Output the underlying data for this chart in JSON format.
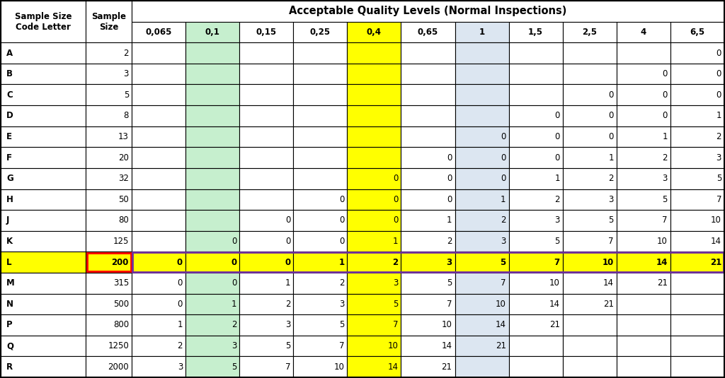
{
  "title": "Acceptable Quality Levels (Normal Inspections)",
  "row_labels": [
    "A",
    "B",
    "C",
    "D",
    "E",
    "F",
    "G",
    "H",
    "J",
    "K",
    "L",
    "M",
    "N",
    "P",
    "Q",
    "R"
  ],
  "sample_sizes": [
    "2",
    "3",
    "5",
    "8",
    "13",
    "20",
    "32",
    "50",
    "80",
    "125",
    "200",
    "315",
    "500",
    "800",
    "1250",
    "2000"
  ],
  "aql_headers": [
    "0,065",
    "0,1",
    "0,15",
    "0,25",
    "0,4",
    "0,65",
    "1",
    "1,5",
    "2,5",
    "4",
    "6,5"
  ],
  "table_data": [
    [
      "",
      "",
      "",
      "",
      "",
      "",
      "",
      "",
      "",
      "",
      "0"
    ],
    [
      "",
      "",
      "",
      "",
      "",
      "",
      "",
      "",
      "",
      "0",
      "0"
    ],
    [
      "",
      "",
      "",
      "",
      "",
      "",
      "",
      "",
      "0",
      "0",
      "0"
    ],
    [
      "",
      "",
      "",
      "",
      "",
      "",
      "",
      "0",
      "0",
      "0",
      "1"
    ],
    [
      "",
      "",
      "",
      "",
      "",
      "",
      "0",
      "0",
      "0",
      "1",
      "2"
    ],
    [
      "",
      "",
      "",
      "",
      "",
      "0",
      "0",
      "0",
      "1",
      "2",
      "3"
    ],
    [
      "",
      "",
      "",
      "",
      "0",
      "0",
      "0",
      "1",
      "2",
      "3",
      "5"
    ],
    [
      "",
      "",
      "",
      "0",
      "0",
      "0",
      "1",
      "2",
      "3",
      "5",
      "7"
    ],
    [
      "",
      "",
      "0",
      "0",
      "0",
      "1",
      "2",
      "3",
      "5",
      "7",
      "10"
    ],
    [
      "",
      "0",
      "0",
      "0",
      "1",
      "2",
      "3",
      "5",
      "7",
      "10",
      "14"
    ],
    [
      "0",
      "0",
      "0",
      "1",
      "2",
      "3",
      "5",
      "7",
      "10",
      "14",
      "21"
    ],
    [
      "0",
      "0",
      "1",
      "2",
      "3",
      "5",
      "7",
      "10",
      "14",
      "21",
      ""
    ],
    [
      "0",
      "1",
      "2",
      "3",
      "5",
      "7",
      "10",
      "14",
      "21",
      "",
      ""
    ],
    [
      "1",
      "2",
      "3",
      "5",
      "7",
      "10",
      "14",
      "21",
      "",
      "",
      ""
    ],
    [
      "2",
      "3",
      "5",
      "7",
      "10",
      "14",
      "21",
      "",
      "",
      "",
      ""
    ],
    [
      "3",
      "5",
      "7",
      "10",
      "14",
      "21",
      "",
      "",
      "",
      "",
      ""
    ]
  ],
  "bg_white": "#ffffff",
  "bg_yellow": "#ffff00",
  "bg_green": "#c6efce",
  "bg_blue": "#dce6f1",
  "border_black": "#000000",
  "border_purple": "#7030a0",
  "border_red": "#ff0000",
  "highlight_row_idx": 10,
  "green_col_idx": 1,
  "yellow_col_idx": 4,
  "blue_col_idx": 6,
  "figsize": [
    10.24,
    5.35
  ],
  "dpi": 100
}
